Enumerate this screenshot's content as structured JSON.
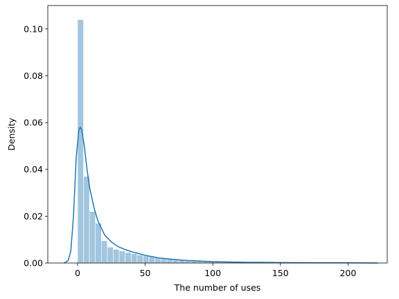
{
  "chart_data": {
    "type": "histogram",
    "xlabel": "The number of uses",
    "ylabel": "Density",
    "bins": [
      0,
      4.4,
      8.8,
      13.2,
      17.6,
      22,
      26.4,
      30.8,
      35.2,
      39.6,
      44,
      48.4,
      52.8,
      57.2,
      61.6,
      66,
      70.4,
      74.8,
      79.2,
      83.6,
      88,
      92.4,
      96.8,
      101.2,
      105.6,
      110,
      114.4,
      118.8,
      123.2,
      127.6,
      132,
      136.4,
      140.8,
      145.2,
      149.6,
      154,
      158.4,
      162.8,
      167.2,
      171.6,
      176,
      180.4,
      184.8,
      189.2,
      193.6,
      198,
      202.4,
      206.8,
      211.2,
      215.6,
      220
    ],
    "values": [
      0.104,
      0.037,
      0.022,
      0.017,
      0.0095,
      0.0068,
      0.0058,
      0.0052,
      0.0045,
      0.004,
      0.0034,
      0.003,
      0.0027,
      0.0024,
      0.002,
      0.0017,
      0.0014,
      0.0012,
      0.001,
      0.0009,
      0.0008,
      0.0007,
      0.0006,
      0.0005,
      0.0005,
      0.0004,
      0.0004,
      0.0003,
      0.0003,
      0.0003,
      0.0002,
      0.0002,
      0.0002,
      0.0002,
      0.0002,
      0.0001,
      0.0001,
      0.0001,
      0.0001,
      0.0001,
      0.0001,
      0.0001,
      0.0001,
      0.0001,
      0.0001,
      0.0001,
      0.0001,
      0.0001,
      0.0001,
      0.0001
    ],
    "color": "#a3c6e0",
    "kde": {
      "color": "#1f77b4",
      "x": [
        -10,
        -7,
        -5,
        -3,
        -1,
        1,
        2,
        3,
        5,
        7,
        9,
        12,
        15,
        20,
        25,
        30,
        35,
        40,
        50,
        60,
        70,
        80,
        100,
        125,
        150,
        175,
        200,
        222
      ],
      "values": [
        0,
        0.001,
        0.005,
        0.02,
        0.045,
        0.057,
        0.058,
        0.057,
        0.05,
        0.04,
        0.032,
        0.024,
        0.018,
        0.012,
        0.009,
        0.007,
        0.0058,
        0.0048,
        0.0033,
        0.0022,
        0.0016,
        0.0011,
        0.0006,
        0.0003,
        0.0002,
        0.0001,
        0.0001,
        0
      ]
    },
    "xlim": [
      -22,
      229
    ],
    "xticks": [
      0,
      50,
      100,
      150,
      200
    ],
    "ylim": [
      0,
      0.11
    ],
    "yticks": [
      {
        "value": 0,
        "label": "0.00"
      },
      {
        "value": 0.02,
        "label": "0.02"
      },
      {
        "value": 0.04,
        "label": "0.04"
      },
      {
        "value": 0.06,
        "label": "0.06"
      },
      {
        "value": 0.08,
        "label": "0.08"
      },
      {
        "value": 0.1,
        "label": "0.10"
      }
    ]
  }
}
